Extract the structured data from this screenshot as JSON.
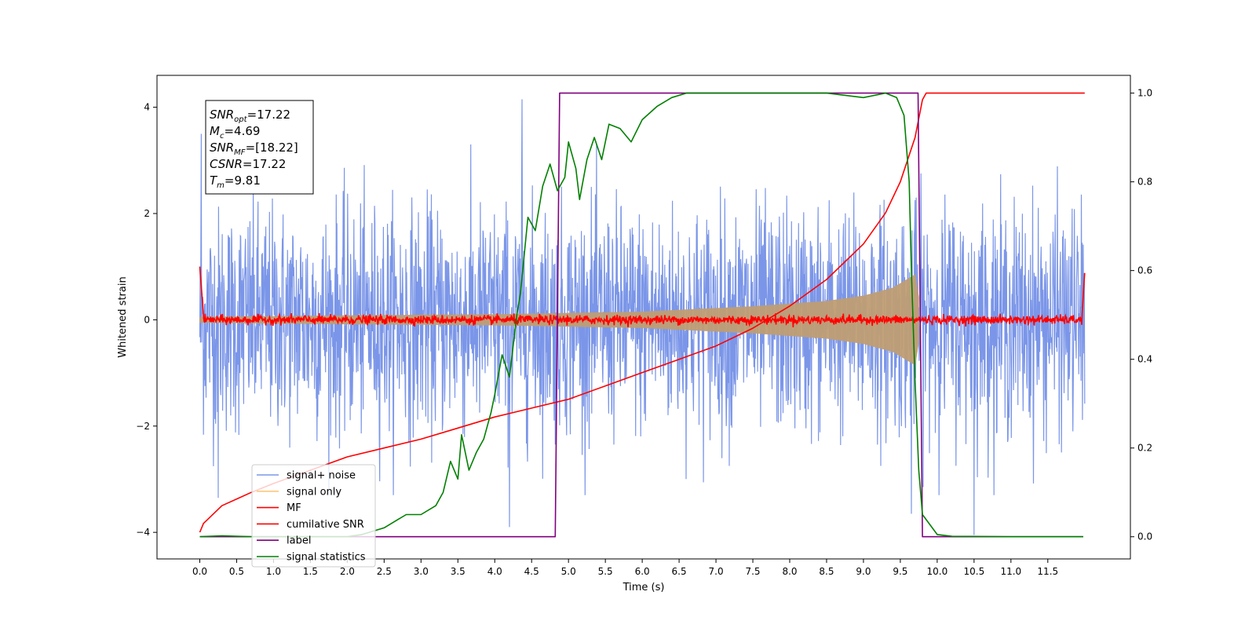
{
  "chart_data": {
    "type": "line",
    "xlabel": "Time (s)",
    "ylabel": "Whitened strain",
    "xlim": [
      -0.58,
      12.62
    ],
    "ylim": [
      -4.5,
      4.6
    ],
    "y2lim": [
      -0.05,
      1.04
    ],
    "xticks": [
      "0.0",
      "0.5",
      "1.0",
      "1.5",
      "2.0",
      "2.5",
      "3.0",
      "3.5",
      "4.0",
      "4.5",
      "5.0",
      "5.5",
      "6.0",
      "6.5",
      "7.0",
      "7.5",
      "8.0",
      "8.5",
      "9.0",
      "9.5",
      "10.0",
      "10.5",
      "11.0",
      "11.5"
    ],
    "yticks": [
      "4",
      "2",
      "0",
      "−2",
      "−4"
    ],
    "y2ticks": [
      "1.0",
      "0.8",
      "0.6",
      "0.4",
      "0.2",
      "0.0"
    ],
    "grid": false,
    "legend_position": "lower-left",
    "annotation": [
      {
        "base": "SNR",
        "sub": "opt",
        "value": "=17.22"
      },
      {
        "base": "M",
        "sub": "c",
        "value": "=4.69"
      },
      {
        "base": "SNR",
        "sub": "MF",
        "value": "=[18.22]"
      },
      {
        "base": "CSNR",
        "sub": "",
        "value": "=17.22"
      },
      {
        "base": "T",
        "sub": "m",
        "value": "=9.81"
      }
    ],
    "series": [
      {
        "name": "signal+ noise",
        "axis": "left",
        "color": "#7b96e8",
        "x_range": [
          0,
          12
        ],
        "envelope_upper_typical": 1.9,
        "envelope_lower_typical": -1.9,
        "peaks": [
          [
            0.02,
            3.5
          ],
          [
            4.37,
            4.15
          ],
          [
            4.2,
            -3.9
          ],
          [
            10.5,
            -4.05
          ],
          [
            0.25,
            -3.35
          ],
          [
            9.65,
            -3.65
          ]
        ]
      },
      {
        "name": "signal only",
        "axis": "left",
        "color": "#bf9d73",
        "amplitude": [
          [
            0,
            0.05
          ],
          [
            2.0,
            0.08
          ],
          [
            4.0,
            0.1
          ],
          [
            6.0,
            0.15
          ],
          [
            7.5,
            0.25
          ],
          [
            8.5,
            0.35
          ],
          [
            9.0,
            0.45
          ],
          [
            9.4,
            0.6
          ],
          [
            9.7,
            0.85
          ],
          [
            9.8,
            0.0
          ]
        ]
      },
      {
        "name": "MF",
        "axis": "left",
        "color": "#ff0000",
        "x_range": [
          0,
          12
        ],
        "level": 0.0,
        "noise": 0.06
      },
      {
        "name": "cumilative SNR",
        "axis": "right",
        "color": "#ff0000",
        "x": [
          0.0,
          0.05,
          0.3,
          0.7,
          1.0,
          1.5,
          2.0,
          2.5,
          3.0,
          3.5,
          4.0,
          4.5,
          5.0,
          5.5,
          6.0,
          6.5,
          7.0,
          7.5,
          8.0,
          8.5,
          9.0,
          9.3,
          9.5,
          9.7,
          9.8,
          9.85,
          12.0
        ],
        "y": [
          0.01,
          0.03,
          0.07,
          0.1,
          0.12,
          0.15,
          0.18,
          0.2,
          0.22,
          0.245,
          0.27,
          0.29,
          0.31,
          0.34,
          0.37,
          0.4,
          0.43,
          0.47,
          0.52,
          0.58,
          0.66,
          0.73,
          0.8,
          0.9,
          0.985,
          1.0,
          1.0
        ]
      },
      {
        "name": "label",
        "axis": "right",
        "color": "#800080",
        "x": [
          0.0,
          4.82,
          4.88,
          9.74,
          9.8,
          11.98
        ],
        "y": [
          0.0,
          0.0,
          1.0,
          1.0,
          0.0,
          0.0
        ]
      },
      {
        "name": "signal statistics",
        "axis": "right",
        "color": "#008000",
        "x": [
          0.0,
          0.3,
          0.7,
          1.0,
          1.5,
          2.0,
          2.2,
          2.5,
          2.7,
          2.8,
          3.0,
          3.2,
          3.3,
          3.4,
          3.5,
          3.55,
          3.65,
          3.75,
          3.85,
          3.95,
          4.0,
          4.1,
          4.2,
          4.3,
          4.35,
          4.45,
          4.55,
          4.65,
          4.75,
          4.85,
          4.95,
          5.0,
          5.1,
          5.15,
          5.25,
          5.35,
          5.45,
          5.55,
          5.7,
          5.85,
          6.0,
          6.2,
          6.4,
          6.6,
          7.0,
          7.5,
          8.0,
          8.5,
          9.0,
          9.3,
          9.45,
          9.55,
          9.62,
          9.65,
          9.7,
          9.75,
          9.8,
          10.0,
          10.2,
          11.0,
          11.98
        ],
        "y": [
          0.0,
          0.002,
          0.0,
          0.0,
          0.0,
          0.0,
          0.005,
          0.02,
          0.04,
          0.05,
          0.05,
          0.07,
          0.1,
          0.17,
          0.13,
          0.23,
          0.15,
          0.19,
          0.22,
          0.28,
          0.32,
          0.41,
          0.36,
          0.5,
          0.55,
          0.72,
          0.69,
          0.79,
          0.84,
          0.78,
          0.81,
          0.89,
          0.83,
          0.76,
          0.85,
          0.9,
          0.85,
          0.93,
          0.92,
          0.89,
          0.94,
          0.97,
          0.99,
          1.0,
          1.0,
          1.0,
          1.0,
          1.0,
          0.99,
          1.0,
          0.99,
          0.95,
          0.8,
          0.6,
          0.35,
          0.15,
          0.05,
          0.005,
          0.001,
          0.0,
          0.0
        ]
      }
    ]
  }
}
